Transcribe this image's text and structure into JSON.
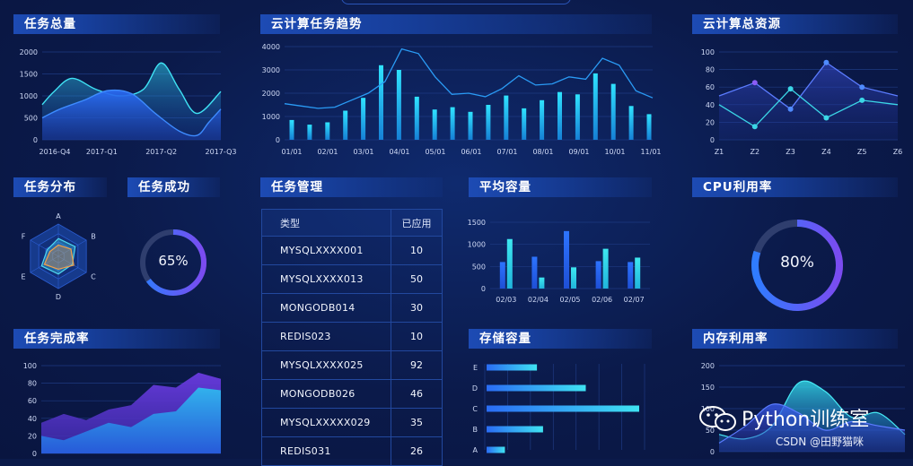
{
  "panels": {
    "task_total": "任务总量",
    "cloud_trend": "云计算任务趋势",
    "cloud_resources": "云计算总资源",
    "task_distribution": "任务分布",
    "task_success": "任务成功",
    "task_management": "任务管理",
    "avg_capacity": "平均容量",
    "cpu_usage": "CPU利用率",
    "task_completion": "任务完成率",
    "storage_capacity": "存储容量",
    "memory_usage": "内存利用率"
  },
  "task_success_value": "65%",
  "cpu_usage_value": "80%",
  "table": {
    "headers": [
      "类型",
      "已应用"
    ],
    "rows": [
      [
        "MYSQLXXXX001",
        "10"
      ],
      [
        "MYSQLXXXX013",
        "50"
      ],
      [
        "MONGODB014",
        "30"
      ],
      [
        "REDIS023",
        "10"
      ],
      [
        "MYSQLXXXX025",
        "92"
      ],
      [
        "MONGODB026",
        "46"
      ],
      [
        "MYSQLXXXXX029",
        "35"
      ],
      [
        "REDIS031",
        "26"
      ]
    ]
  },
  "watermark": {
    "brand": "Python训练室",
    "credit": "CSDN @田野猫咪"
  },
  "colors": {
    "background": "#0b1a4a",
    "title_bar": "#1d4bb4",
    "accent_cyan": "#29d6f0",
    "accent_blue": "#2a6cf5",
    "accent_purple": "#7b4bf0"
  },
  "chart_data": [
    {
      "id": "task_total",
      "type": "area",
      "categories": [
        "2016-Q4",
        "2017-Q1",
        "2017-Q2",
        "2017-Q3"
      ],
      "yticks": [
        "0",
        "500",
        "1000",
        "1500",
        "2000"
      ],
      "ylim": [
        0,
        2000
      ],
      "series": [
        {
          "x": [
            0,
            0.2,
            0.5,
            0.9,
            1.3,
            1.7,
            2.0,
            2.3,
            2.6,
            3.0
          ],
          "values": [
            800,
            1100,
            1400,
            1150,
            1000,
            1150,
            1750,
            1150,
            600,
            1100
          ]
        },
        {
          "x": [
            0,
            0.3,
            0.7,
            1.1,
            1.5,
            1.9,
            2.3,
            2.6,
            2.8,
            3.0
          ],
          "values": [
            500,
            700,
            900,
            1120,
            1050,
            600,
            200,
            100,
            400,
            700
          ]
        }
      ]
    },
    {
      "id": "cloud_trend",
      "type": "bar",
      "categories": [
        "01/01",
        "02/01",
        "03/01",
        "04/01",
        "05/01",
        "06/01",
        "07/01",
        "08/01",
        "09/01",
        "10/01",
        "11/01"
      ],
      "yticks": [
        "0",
        "1000",
        "2000",
        "3000",
        "4000"
      ],
      "ylim": [
        0,
        4000
      ],
      "bars": [
        850,
        650,
        750,
        1250,
        1800,
        3200,
        3000,
        1850,
        1300,
        1400,
        1200,
        1500,
        1900,
        1350,
        1700,
        2050,
        1950,
        2850,
        2400,
        1450,
        1100
      ],
      "line": [
        1550,
        1450,
        1350,
        1400,
        1700,
        2000,
        2500,
        3900,
        3700,
        2700,
        1950,
        2000,
        1850,
        2200,
        2750,
        2350,
        2400,
        2700,
        2600,
        3500,
        3200,
        2100,
        1800
      ]
    },
    {
      "id": "cloud_resources",
      "type": "line",
      "categories": [
        "Z1",
        "Z2",
        "Z3",
        "Z4",
        "Z5",
        "Z6"
      ],
      "yticks": [
        "0",
        "20",
        "40",
        "60",
        "80",
        "100"
      ],
      "ylim": [
        0,
        100
      ],
      "series": [
        {
          "values": [
            50,
            65,
            35,
            88,
            60,
            50
          ]
        },
        {
          "values": [
            40,
            15,
            58,
            25,
            45,
            40
          ]
        }
      ]
    },
    {
      "id": "task_distribution",
      "type": "radar",
      "axes": [
        "A",
        "B",
        "C",
        "D",
        "E",
        "F"
      ]
    },
    {
      "id": "avg_capacity",
      "type": "bar",
      "categories": [
        "02/03",
        "02/04",
        "02/05",
        "02/06",
        "02/07"
      ],
      "yticks": [
        "0",
        "500",
        "1000",
        "1500"
      ],
      "ylim": [
        0,
        1500
      ],
      "series": [
        {
          "values": [
            600,
            720,
            1300,
            620,
            600
          ]
        },
        {
          "values": [
            1120,
            250,
            480,
            900,
            700
          ]
        }
      ]
    },
    {
      "id": "task_completion",
      "type": "area",
      "yticks": [
        "0",
        "20",
        "40",
        "60",
        "80",
        "100"
      ],
      "ylim": [
        0,
        100
      ],
      "series": [
        {
          "values": [
            35,
            45,
            38,
            50,
            55,
            78,
            75,
            92,
            85
          ]
        },
        {
          "values": [
            20,
            15,
            25,
            35,
            30,
            45,
            48,
            75,
            72
          ]
        }
      ]
    },
    {
      "id": "storage_capacity",
      "type": "bar",
      "orientation": "horizontal",
      "categories": [
        "A",
        "B",
        "C",
        "D",
        "E"
      ],
      "values": [
        12,
        37,
        100,
        65,
        33
      ],
      "xlim": [
        0,
        100
      ]
    },
    {
      "id": "memory_usage",
      "type": "area",
      "yticks": [
        "0",
        "50",
        "100",
        "150",
        "200"
      ],
      "ylim": [
        0,
        200
      ],
      "series": [
        {
          "values": [
            40,
            30,
            60,
            160,
            140,
            80,
            90,
            40
          ]
        },
        {
          "values": [
            20,
            60,
            110,
            90,
            50,
            70,
            60,
            50
          ]
        }
      ]
    }
  ]
}
